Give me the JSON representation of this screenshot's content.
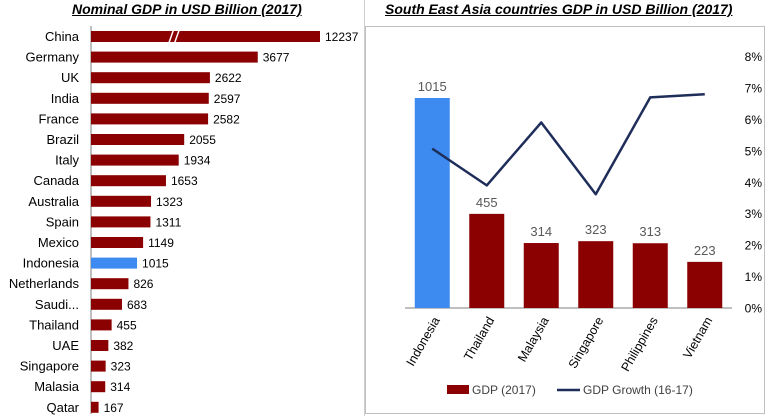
{
  "colors": {
    "bar": "#8B0000",
    "highlight": "#3D8BF0",
    "growth_line": "#1F2D5A"
  },
  "chart_data": [
    {
      "type": "bar",
      "orientation": "horizontal",
      "title": "Nominal GDP in USD Billion (2017)",
      "categories": [
        "China",
        "Germany",
        "UK",
        "India",
        "France",
        "Brazil",
        "Italy",
        "Canada",
        "Australia",
        "Spain",
        "Mexico",
        "Indonesia",
        "Netherlands",
        "Saudi...",
        "Thailand",
        "UAE",
        "Singapore",
        "Malasia",
        "Qatar"
      ],
      "values": [
        12237,
        3677,
        2622,
        2597,
        2582,
        2055,
        1934,
        1653,
        1323,
        1311,
        1149,
        1015,
        826,
        683,
        455,
        382,
        323,
        314,
        167
      ],
      "highlight": "Indonesia",
      "axis_break": "China",
      "xlim": [
        0,
        4400
      ]
    },
    {
      "type": "bar",
      "title": "South East Asia countries GDP in USD Billion (2017)",
      "categories": [
        "Indonesia",
        "Thailand",
        "Malaysia",
        "Singapore",
        "Philippines",
        "Vietnam"
      ],
      "series": [
        {
          "name": "GDP (2017)",
          "type": "bar",
          "values": [
            1015,
            455,
            314,
            323,
            313,
            223
          ]
        },
        {
          "name": "GDP Growth (16-17)",
          "type": "line",
          "axis": "right",
          "values": [
            5.07,
            3.9,
            5.9,
            3.62,
            6.7,
            6.8
          ]
        }
      ],
      "highlight": "Indonesia",
      "y2_ticks": [
        "0%",
        "1%",
        "2%",
        "3%",
        "4%",
        "5%",
        "6%",
        "7%",
        "8%"
      ],
      "y2lim": [
        0,
        8
      ],
      "legend": "bottom",
      "grid": false
    }
  ]
}
